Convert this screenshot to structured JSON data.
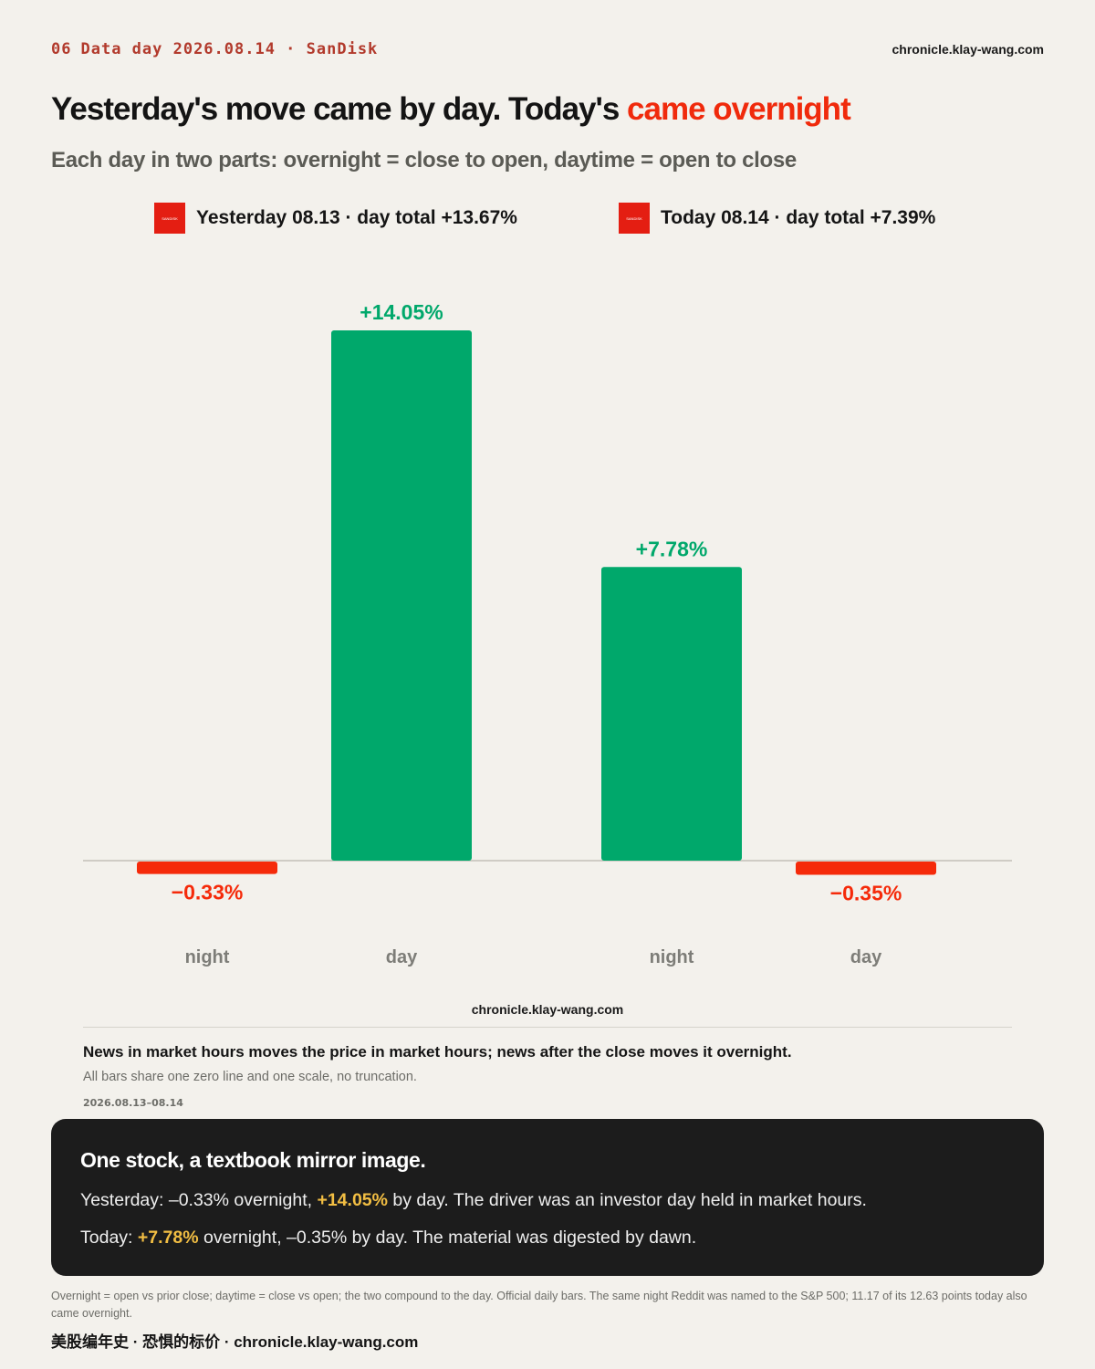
{
  "header": {
    "page_number": "06",
    "kicker": "Data day 2026.08.14 · SanDisk",
    "site": "chronicle.klay-wang.com",
    "title_main": "Yesterday's move came by day. Today's ",
    "title_highlight": "came overnight",
    "subtitle": "Each day in two parts: overnight = close to open, daytime = open to close"
  },
  "legend": [
    {
      "logo_text": "SANDISK",
      "label": "Yesterday 08.13 · day total +13.67%"
    },
    {
      "logo_text": "SANDISK",
      "label": "Today 08.14 · day total +7.39%"
    }
  ],
  "chart_data": {
    "type": "bar",
    "title": "",
    "xlabel": "",
    "ylabel": "",
    "grid": false,
    "ylim": [
      -1.0,
      16.0
    ],
    "groups": [
      {
        "name": "Yesterday 08.13",
        "total": 13.67
      },
      {
        "name": "Today 08.14",
        "total": 7.39
      }
    ],
    "bars": [
      {
        "group": 0,
        "category": "night",
        "value": -0.33,
        "label": "−0.33%"
      },
      {
        "group": 0,
        "category": "day",
        "value": 14.05,
        "label": "+14.05%"
      },
      {
        "group": 1,
        "category": "night",
        "value": 7.78,
        "label": "+7.78%"
      },
      {
        "group": 1,
        "category": "day",
        "value": -0.35,
        "label": "−0.35%"
      }
    ],
    "colors": {
      "positive": "#00a86b",
      "negative": "#f52a0a",
      "zero_line": "#cfccc5",
      "category_label": "#7d7d78"
    }
  },
  "chart_credit": "chronicle.klay-wang.com",
  "notes": {
    "main": "News in market hours moves the price in market hours; news after the close moves it overnight.",
    "sub": "All bars share one zero line and one scale, no truncation.",
    "date_range": "2026.08.13–08.14"
  },
  "card": {
    "title": "One stock, a textbook mirror image.",
    "line1_a": "Yesterday: –0.33% overnight, ",
    "line1_hl": "+14.05%",
    "line1_b": " by day. The driver was an investor day held in market hours.",
    "line2_a": "Today: ",
    "line2_hl": "+7.78%",
    "line2_b": " overnight, –0.35% by day. The material was digested by dawn."
  },
  "footnote": "Overnight = open vs prior close; daytime = close vs open; the two compound to the day. Official daily bars. The same night Reddit was named to the S&P 500; 11.17 of its 12.63 points today also came overnight.",
  "brand": "美股编年史 · 恐惧的标价 · chronicle.klay-wang.com",
  "colors": {
    "accent": "#f02a0c",
    "kicker": "#b23a2c",
    "highlight_yellow": "#f2be43",
    "card_bg": "#1c1c1c",
    "page_bg": "#f3f1ec"
  }
}
